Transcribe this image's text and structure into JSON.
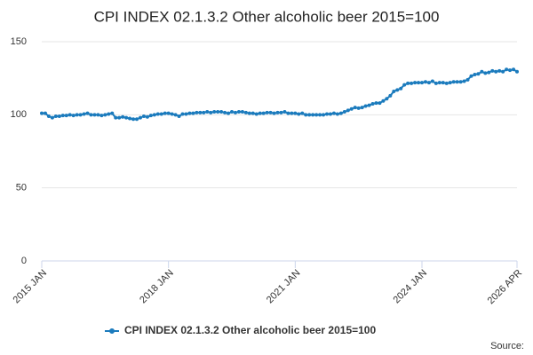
{
  "chart_data": {
    "type": "line",
    "title": "CPI INDEX 02.1.3.2 Other alcoholic beer 2015=100",
    "source": "Source:",
    "categories": [
      "2015 JAN",
      null,
      null,
      null,
      null,
      null,
      null,
      null,
      null,
      null,
      null,
      null,
      null,
      null,
      null,
      null,
      null,
      null,
      null,
      null,
      null,
      null,
      null,
      null,
      null,
      null,
      null,
      null,
      null,
      null,
      null,
      null,
      null,
      null,
      null,
      null,
      "2018 JAN",
      null,
      null,
      null,
      null,
      null,
      null,
      null,
      null,
      null,
      null,
      null,
      null,
      null,
      null,
      null,
      null,
      null,
      null,
      null,
      null,
      null,
      null,
      null,
      null,
      null,
      null,
      null,
      null,
      null,
      null,
      null,
      null,
      null,
      null,
      null,
      "2021 JAN",
      null,
      null,
      null,
      null,
      null,
      null,
      null,
      null,
      null,
      null,
      null,
      null,
      null,
      null,
      null,
      null,
      null,
      null,
      null,
      null,
      null,
      null,
      null,
      null,
      null,
      null,
      null,
      null,
      null,
      null,
      null,
      null,
      null,
      null,
      null,
      "2024 JAN",
      null,
      null,
      null,
      null,
      null,
      null,
      null,
      null,
      null,
      null,
      null,
      null,
      null,
      null,
      null,
      null,
      null,
      null,
      null,
      null,
      null,
      null,
      null,
      null,
      null,
      null,
      "2026 APR"
    ],
    "series": [
      {
        "name": "CPI INDEX 02.1.3.2 Other alcoholic beer 2015=100",
        "color": "#1b7bbd",
        "values": [
          101,
          101,
          99,
          98,
          99,
          99,
          99.5,
          99.5,
          100,
          99.5,
          100,
          100,
          100.5,
          101,
          100,
          100,
          100,
          99.5,
          100,
          100.5,
          101,
          98,
          98,
          98.5,
          98,
          97.5,
          97,
          97,
          98,
          99,
          98.5,
          99.5,
          100,
          100.5,
          100.5,
          101,
          101,
          100.5,
          100,
          99,
          100.5,
          100.5,
          101,
          101,
          101.5,
          101.5,
          101.5,
          102,
          101.5,
          102,
          102,
          102,
          101.5,
          101,
          102,
          101.5,
          102,
          102,
          101.5,
          101,
          101,
          100.5,
          101,
          101,
          101.5,
          101.5,
          101,
          101.5,
          101.5,
          102,
          101,
          101,
          101,
          100.5,
          101,
          100,
          100,
          100,
          100,
          100,
          100,
          100.5,
          100.5,
          101,
          100.5,
          101,
          102,
          103,
          104,
          105,
          104.5,
          105,
          106,
          106.5,
          107.5,
          108,
          108,
          109.5,
          111,
          113,
          116,
          117,
          118,
          120.5,
          121.5,
          121.5,
          122,
          122,
          122,
          122.5,
          122,
          123,
          121.5,
          122,
          122,
          121.5,
          122,
          122.5,
          122.5,
          122.5,
          123,
          124,
          126.5,
          127.5,
          128,
          129.5,
          128.5,
          129,
          130,
          129.5,
          130,
          129.5,
          131,
          130.5,
          131,
          129.5
        ]
      }
    ],
    "ylim": [
      0,
      150
    ],
    "yticks": [
      0,
      50,
      100,
      150
    ],
    "grid": true
  }
}
